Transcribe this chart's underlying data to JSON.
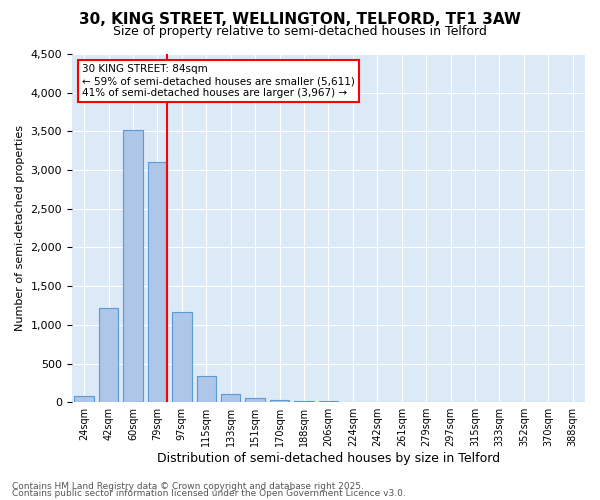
{
  "title_line1": "30, KING STREET, WELLINGTON, TELFORD, TF1 3AW",
  "title_line2": "Size of property relative to semi-detached houses in Telford",
  "xlabel": "Distribution of semi-detached houses by size in Telford",
  "ylabel": "Number of semi-detached properties",
  "bar_values": [
    80,
    1220,
    3520,
    3100,
    1160,
    340,
    100,
    55,
    30,
    15,
    10,
    0,
    0,
    0,
    0,
    0,
    0,
    0,
    0,
    0,
    0
  ],
  "bin_labels": [
    "24sqm",
    "42sqm",
    "60sqm",
    "79sqm",
    "97sqm",
    "115sqm",
    "133sqm",
    "151sqm",
    "170sqm",
    "188sqm",
    "206sqm",
    "224sqm",
    "242sqm",
    "261sqm",
    "279sqm",
    "297sqm",
    "315sqm",
    "333sqm",
    "352sqm",
    "370sqm",
    "388sqm"
  ],
  "bar_color": "#aec6e8",
  "bar_edge_color": "#5b9bd5",
  "vline_color": "red",
  "annotation_title": "30 KING STREET: 84sqm",
  "annotation_line2": "← 59% of semi-detached houses are smaller (5,611)",
  "annotation_line3": "41% of semi-detached houses are larger (3,967) →",
  "annotation_box_color": "white",
  "annotation_box_edge": "red",
  "ylim": [
    0,
    4500
  ],
  "yticks": [
    0,
    500,
    1000,
    1500,
    2000,
    2500,
    3000,
    3500,
    4000,
    4500
  ],
  "footer_line1": "Contains HM Land Registry data © Crown copyright and database right 2025.",
  "footer_line2": "Contains public sector information licensed under the Open Government Licence v3.0.",
  "plot_bg_color": "#dce9f7"
}
